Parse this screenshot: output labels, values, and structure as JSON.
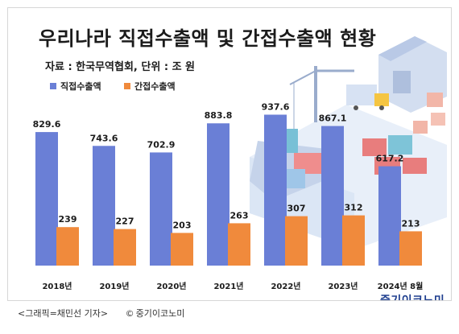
{
  "header": {
    "title": "우리나라 직접수출액 및 간접수출액 현황",
    "source": "자료 : 한국무역협회, 단위 : 조 원"
  },
  "caption": {
    "text": "<그래픽=채민선 기자>",
    "credit": "중기이코노미"
  },
  "logo": {
    "text": "중기이코노미"
  },
  "colors": {
    "direct": "#6a7fd6",
    "indirect": "#f08a3c",
    "title": "#1b1b1b",
    "illustration": "#c9d9ee"
  },
  "chart_data": {
    "type": "bar",
    "title": "우리나라 직접수출액 및 간접수출액 현황",
    "subtitle": "자료 : 한국무역협회, 단위 : 조 원",
    "xlabel": "",
    "ylabel": "",
    "categories": [
      "2018년",
      "2019년",
      "2020년",
      "2021년",
      "2022년",
      "2023년",
      "2024년 8월"
    ],
    "series": [
      {
        "name": "직접수출액",
        "values": [
          829.6,
          743.6,
          702.9,
          883.8,
          937.6,
          867.1,
          617.2
        ]
      },
      {
        "name": "간접수출액",
        "values": [
          239,
          227,
          203,
          263,
          307,
          312,
          213
        ]
      }
    ],
    "ylim": [
      0,
      960
    ],
    "legend": "top-left",
    "grid": false
  }
}
